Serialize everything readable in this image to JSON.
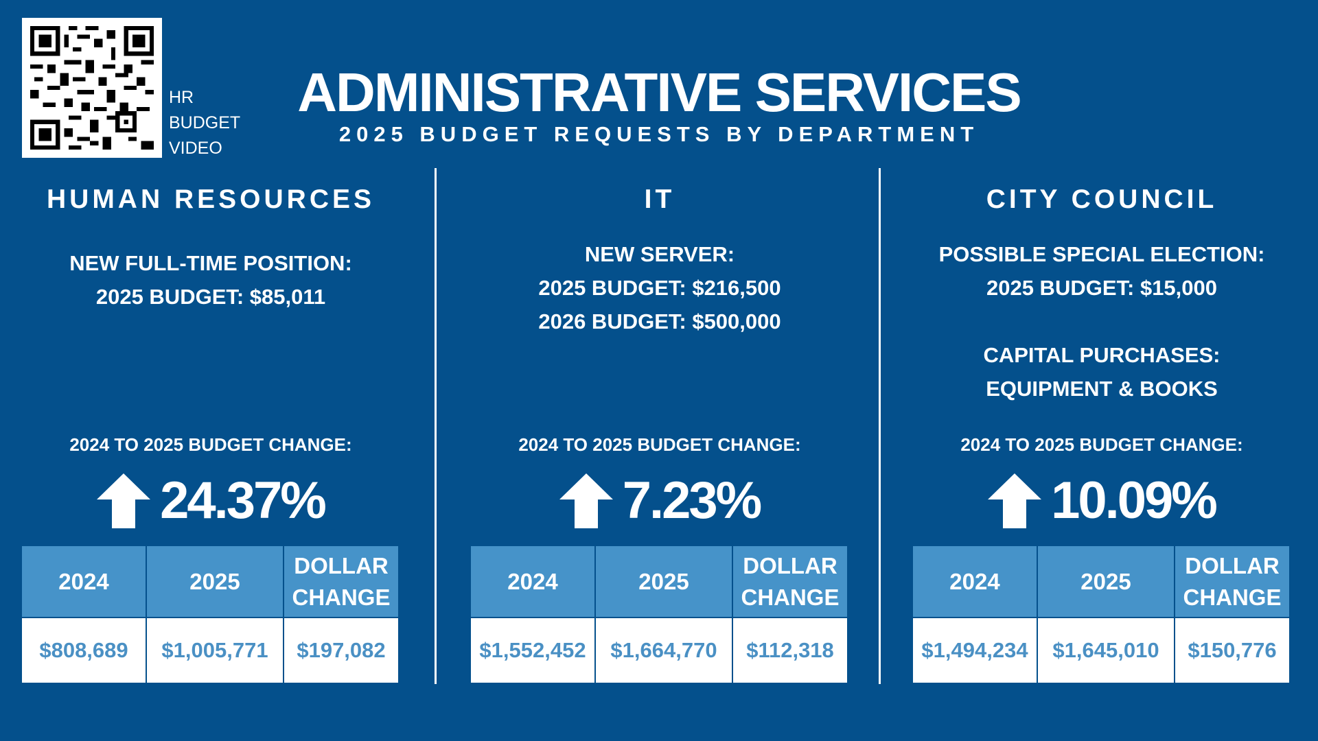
{
  "qr": {
    "caption": [
      "HR",
      "BUDGET",
      "VIDEO"
    ]
  },
  "header": {
    "title": "ADMINISTRATIVE SERVICES",
    "subtitle": "2025 BUDGET REQUESTS BY DEPARTMENT"
  },
  "colors": {
    "background": "#04508c",
    "table_header": "#4693c9",
    "table_value": "#4a90c4",
    "text": "#ffffff"
  },
  "departments": [
    {
      "name": "HUMAN RESOURCES",
      "details": [
        "NEW FULL-TIME POSITION:",
        "2025 BUDGET: $85,011"
      ],
      "change_label": "2024 TO 2025 BUDGET CHANGE:",
      "change_icon": "arrow-up-icon",
      "change_pct": "24.37%",
      "table": {
        "headers": [
          "2024",
          "2025",
          "DOLLAR",
          "CHANGE"
        ],
        "values": [
          "$808,689",
          "$1,005,771",
          "$197,082"
        ]
      }
    },
    {
      "name": "IT",
      "details": [
        "NEW SERVER:",
        "2025 BUDGET: $216,500",
        "2026 BUDGET: $500,000"
      ],
      "change_label": "2024 TO 2025 BUDGET CHANGE:",
      "change_icon": "arrow-up-icon",
      "change_pct": "7.23%",
      "table": {
        "headers": [
          "2024",
          "2025",
          "DOLLAR",
          "CHANGE"
        ],
        "values": [
          "$1,552,452",
          "$1,664,770",
          "$112,318"
        ]
      }
    },
    {
      "name": "CITY COUNCIL",
      "details": [
        "POSSIBLE SPECIAL ELECTION:",
        "2025 BUDGET: $15,000",
        "CAPITAL PURCHASES:",
        "EQUIPMENT & BOOKS"
      ],
      "change_label": "2024 TO 2025 BUDGET CHANGE:",
      "change_icon": "arrow-up-icon",
      "change_pct": "10.09%",
      "table": {
        "headers": [
          "2024",
          "2025",
          "DOLLAR",
          "CHANGE"
        ],
        "values": [
          "$1,494,234",
          "$1,645,010",
          "$150,776"
        ]
      }
    }
  ]
}
